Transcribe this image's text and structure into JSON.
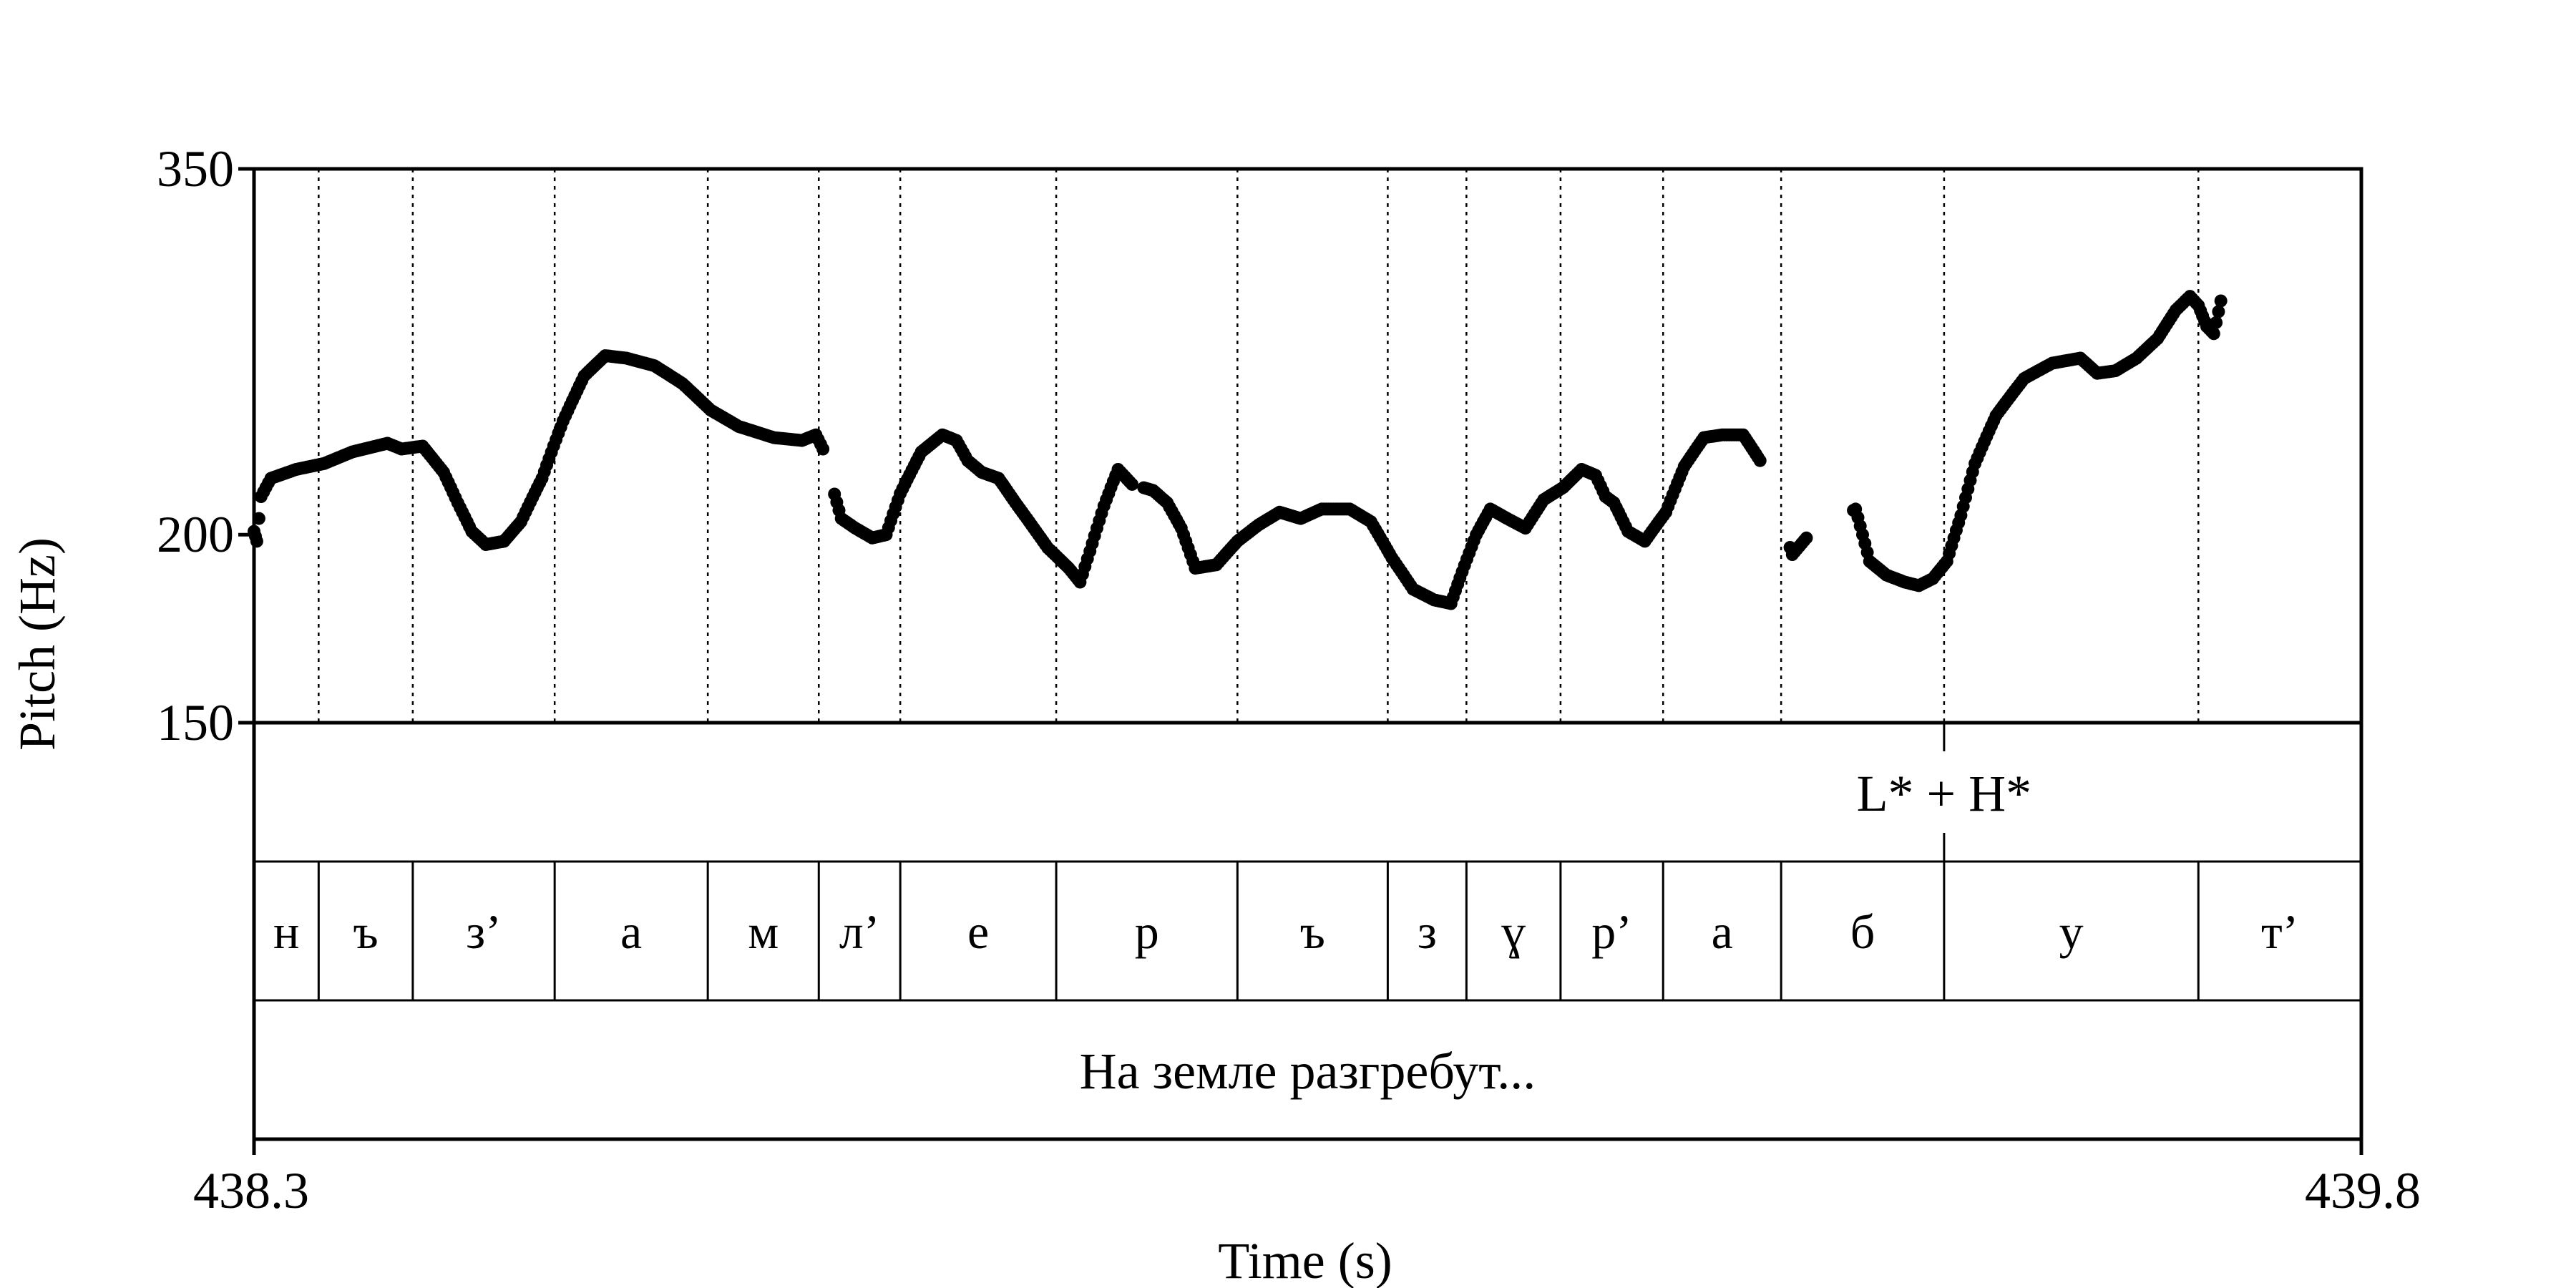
{
  "chart_data": {
    "type": "scatter",
    "title": "",
    "xlabel": "Time (s)",
    "ylabel": "Pitch (Hz)",
    "xlim": [
      438.3,
      439.8
    ],
    "ylim": [
      150,
      350
    ],
    "y_scale": "log",
    "x_ticks": [
      "438.3",
      "439.8"
    ],
    "y_ticks": [
      {
        "value": 350,
        "label": "350"
      },
      {
        "value": 200,
        "label": "200"
      },
      {
        "value": 150,
        "label": "150"
      }
    ],
    "grid": false,
    "tones": [
      {
        "time": 439.503,
        "label": "L* + H*"
      }
    ],
    "segments": [
      {
        "start": 438.3,
        "end": 438.346,
        "label": "н"
      },
      {
        "start": 438.346,
        "end": 438.413,
        "label": "ъ"
      },
      {
        "start": 438.413,
        "end": 438.514,
        "label": "з’"
      },
      {
        "start": 438.514,
        "end": 438.623,
        "label": "а"
      },
      {
        "start": 438.623,
        "end": 438.702,
        "label": "м"
      },
      {
        "start": 438.702,
        "end": 438.76,
        "label": "л’"
      },
      {
        "start": 438.76,
        "end": 438.871,
        "label": "е"
      },
      {
        "start": 438.871,
        "end": 439.0,
        "label": "р"
      },
      {
        "start": 439.0,
        "end": 439.107,
        "label": "ъ"
      },
      {
        "start": 439.107,
        "end": 439.163,
        "label": "з"
      },
      {
        "start": 439.163,
        "end": 439.23,
        "label": "ɣ"
      },
      {
        "start": 439.23,
        "end": 439.303,
        "label": "р’"
      },
      {
        "start": 439.303,
        "end": 439.387,
        "label": "а"
      },
      {
        "start": 439.387,
        "end": 439.503,
        "label": "б"
      },
      {
        "start": 439.503,
        "end": 439.684,
        "label": "у"
      },
      {
        "start": 439.684,
        "end": 439.8,
        "label": "т’"
      }
    ],
    "utterance": "На земле разгребут...",
    "contour_keypoints": [
      [
        438.3,
        201
      ],
      [
        438.302,
        198
      ],
      [
        438.305,
        212
      ],
      [
        438.312,
        218
      ],
      [
        438.33,
        221
      ],
      [
        438.35,
        223
      ],
      [
        438.37,
        227
      ],
      [
        438.395,
        230
      ],
      [
        438.405,
        228
      ],
      [
        438.42,
        229
      ],
      [
        438.435,
        220
      ],
      [
        438.445,
        210
      ],
      [
        438.455,
        201
      ],
      [
        438.465,
        197
      ],
      [
        438.478,
        198
      ],
      [
        438.49,
        204
      ],
      [
        438.505,
        218
      ],
      [
        438.52,
        238
      ],
      [
        438.535,
        255
      ],
      [
        438.55,
        263
      ],
      [
        438.565,
        262
      ],
      [
        438.585,
        259
      ],
      [
        438.605,
        252
      ],
      [
        438.625,
        242
      ],
      [
        438.645,
        236
      ],
      [
        438.67,
        232
      ],
      [
        438.69,
        231
      ],
      [
        438.7,
        233
      ],
      [
        438.705,
        228
      ],
      [
        438.71,
        218
      ],
      [
        438.718,
        205
      ],
      [
        438.728,
        202
      ],
      [
        438.74,
        199
      ],
      [
        438.75,
        200
      ],
      [
        438.76,
        213
      ],
      [
        438.775,
        227
      ],
      [
        438.79,
        233
      ],
      [
        438.8,
        231
      ],
      [
        438.808,
        224
      ],
      [
        438.818,
        220
      ],
      [
        438.83,
        218
      ],
      [
        438.842,
        210
      ],
      [
        438.855,
        202
      ],
      [
        438.865,
        196
      ],
      [
        438.88,
        190
      ],
      [
        438.888,
        186
      ],
      [
        438.895,
        195
      ],
      [
        438.905,
        209
      ],
      [
        438.915,
        221
      ],
      [
        438.925,
        216
      ],
      [
        438.94,
        214
      ],
      [
        438.95,
        210
      ],
      [
        438.96,
        202
      ],
      [
        438.97,
        190
      ],
      [
        438.985,
        191
      ],
      [
        439.0,
        198
      ],
      [
        439.015,
        203
      ],
      [
        439.03,
        207
      ],
      [
        439.045,
        205
      ],
      [
        439.06,
        208
      ],
      [
        439.08,
        208
      ],
      [
        439.095,
        204
      ],
      [
        439.11,
        193
      ],
      [
        439.125,
        184
      ],
      [
        439.14,
        181
      ],
      [
        439.152,
        180
      ],
      [
        439.16,
        189
      ],
      [
        439.17,
        200
      ],
      [
        439.18,
        208
      ],
      [
        439.192,
        205
      ],
      [
        439.205,
        202
      ],
      [
        439.218,
        211
      ],
      [
        439.232,
        215
      ],
      [
        439.245,
        221
      ],
      [
        439.255,
        219
      ],
      [
        439.262,
        212
      ],
      [
        439.268,
        210
      ],
      [
        439.278,
        201
      ],
      [
        439.29,
        198
      ],
      [
        439.305,
        207
      ],
      [
        439.318,
        222
      ],
      [
        439.332,
        232
      ],
      [
        439.345,
        233
      ],
      [
        439.36,
        233
      ],
      [
        439.372,
        224
      ],
      [
        439.395,
        194
      ],
      [
        439.405,
        199
      ],
      [
        439.44,
        208
      ],
      [
        439.45,
        192
      ],
      [
        439.462,
        188
      ],
      [
        439.475,
        186
      ],
      [
        439.485,
        185
      ],
      [
        439.495,
        187
      ],
      [
        439.505,
        192
      ],
      [
        439.515,
        206
      ],
      [
        439.525,
        223
      ],
      [
        439.54,
        240
      ],
      [
        439.56,
        254
      ],
      [
        439.58,
        260
      ],
      [
        439.6,
        262
      ],
      [
        439.612,
        256
      ],
      [
        439.625,
        257
      ],
      [
        439.64,
        262
      ],
      [
        439.655,
        270
      ],
      [
        439.668,
        282
      ],
      [
        439.678,
        288
      ],
      [
        439.684,
        284
      ],
      [
        439.69,
        275
      ],
      [
        439.695,
        272
      ],
      [
        439.7,
        286
      ]
    ]
  }
}
